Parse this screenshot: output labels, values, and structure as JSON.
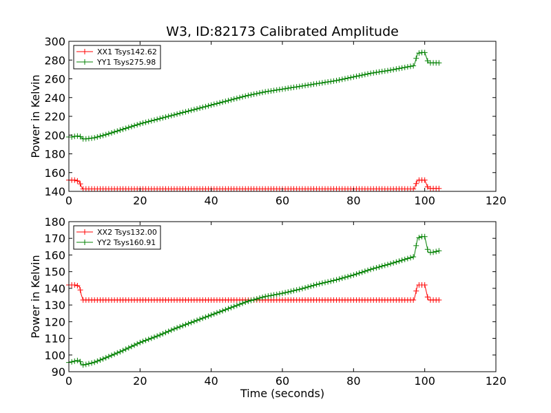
{
  "figure": {
    "title": "W3, ID:82173 Calibrated Amplitude",
    "xlabel": "Time (seconds)"
  },
  "chart_data": [
    {
      "type": "line",
      "title": "W3, ID:82173 Calibrated Amplitude",
      "xlabel": "",
      "ylabel": "Power in Kelvin",
      "xlim": [
        0,
        120
      ],
      "ylim": [
        140,
        300
      ],
      "xticks": [
        "0",
        "20",
        "40",
        "60",
        "80",
        "100",
        "120"
      ],
      "yticks": [
        "140",
        "160",
        "180",
        "200",
        "220",
        "240",
        "260",
        "280",
        "300"
      ],
      "grid": false,
      "legend_position": "top-left",
      "series": [
        {
          "name": "XX1 Tsys142.62",
          "color": "#ff0000",
          "marker": "plus",
          "points": [
            [
              0,
              152
            ],
            [
              1,
              152
            ],
            [
              2,
              152
            ],
            [
              3,
              150
            ],
            [
              3.5,
              145
            ],
            [
              4,
              142.6
            ],
            [
              10,
              142.6
            ],
            [
              20,
              142.6
            ],
            [
              30,
              142.6
            ],
            [
              40,
              142.6
            ],
            [
              50,
              142.6
            ],
            [
              60,
              142.6
            ],
            [
              70,
              142.6
            ],
            [
              80,
              142.6
            ],
            [
              90,
              142.6
            ],
            [
              97,
              142.6
            ],
            [
              98,
              152
            ],
            [
              99,
              152
            ],
            [
              100,
              152
            ],
            [
              101,
              143
            ],
            [
              104,
              143
            ]
          ]
        },
        {
          "name": "YY1 Tsys275.98",
          "color": "#008000",
          "marker": "plus",
          "points": [
            [
              0,
              198
            ],
            [
              1,
              198
            ],
            [
              2,
              199
            ],
            [
              3,
              199
            ],
            [
              4,
              196
            ],
            [
              5,
              196
            ],
            [
              7,
              197
            ],
            [
              10,
              200
            ],
            [
              15,
              206
            ],
            [
              20,
              212
            ],
            [
              25,
              217
            ],
            [
              30,
              222
            ],
            [
              35,
              227
            ],
            [
              40,
              232
            ],
            [
              45,
              237
            ],
            [
              50,
              242
            ],
            [
              55,
              246
            ],
            [
              60,
              249
            ],
            [
              65,
              252
            ],
            [
              70,
              255
            ],
            [
              75,
              258
            ],
            [
              80,
              262
            ],
            [
              85,
              266
            ],
            [
              90,
              269
            ],
            [
              97,
              274
            ],
            [
              98,
              287
            ],
            [
              99,
              288
            ],
            [
              100,
              288
            ],
            [
              101,
              277
            ],
            [
              102,
              277
            ],
            [
              104,
              277
            ]
          ]
        }
      ]
    },
    {
      "type": "line",
      "title": "",
      "xlabel": "Time (seconds)",
      "ylabel": "Power in Kelvin",
      "xlim": [
        0,
        120
      ],
      "ylim": [
        90,
        180
      ],
      "xticks": [
        "0",
        "20",
        "40",
        "60",
        "80",
        "100",
        "120"
      ],
      "yticks": [
        "90",
        "100",
        "110",
        "120",
        "130",
        "140",
        "150",
        "160",
        "170",
        "180"
      ],
      "grid": false,
      "legend_position": "top-left",
      "series": [
        {
          "name": "XX2 Tsys132.00",
          "color": "#ff0000",
          "marker": "plus",
          "points": [
            [
              0,
              142
            ],
            [
              1,
              142
            ],
            [
              2,
              142
            ],
            [
              3,
              141
            ],
            [
              3.5,
              136
            ],
            [
              4,
              133
            ],
            [
              10,
              133
            ],
            [
              20,
              133
            ],
            [
              30,
              133
            ],
            [
              40,
              133
            ],
            [
              50,
              133
            ],
            [
              60,
              133
            ],
            [
              70,
              133
            ],
            [
              80,
              133
            ],
            [
              90,
              133
            ],
            [
              97,
              133
            ],
            [
              98,
              142
            ],
            [
              99,
              142
            ],
            [
              100,
              142
            ],
            [
              101,
              133
            ],
            [
              104,
              133
            ]
          ]
        },
        {
          "name": "YY2 Tsys160.91",
          "color": "#008000",
          "marker": "plus",
          "points": [
            [
              0,
              95.5
            ],
            [
              1,
              96
            ],
            [
              2,
              96.5
            ],
            [
              3,
              97
            ],
            [
              3.5,
              94.5
            ],
            [
              4,
              94
            ],
            [
              5,
              94.5
            ],
            [
              7,
              95.5
            ],
            [
              10,
              98
            ],
            [
              15,
              102.5
            ],
            [
              20,
              107.5
            ],
            [
              25,
              111.5
            ],
            [
              30,
              116
            ],
            [
              35,
              120
            ],
            [
              40,
              124
            ],
            [
              45,
              128
            ],
            [
              50,
              132
            ],
            [
              55,
              135
            ],
            [
              60,
              137
            ],
            [
              65,
              139.5
            ],
            [
              70,
              142.5
            ],
            [
              75,
              145
            ],
            [
              80,
              148
            ],
            [
              85,
              151.5
            ],
            [
              90,
              154.5
            ],
            [
              97,
              159
            ],
            [
              98,
              170
            ],
            [
              99,
              171
            ],
            [
              100,
              171
            ],
            [
              101,
              161.5
            ],
            [
              102,
              161.5
            ],
            [
              104,
              162.5
            ]
          ]
        }
      ]
    }
  ]
}
